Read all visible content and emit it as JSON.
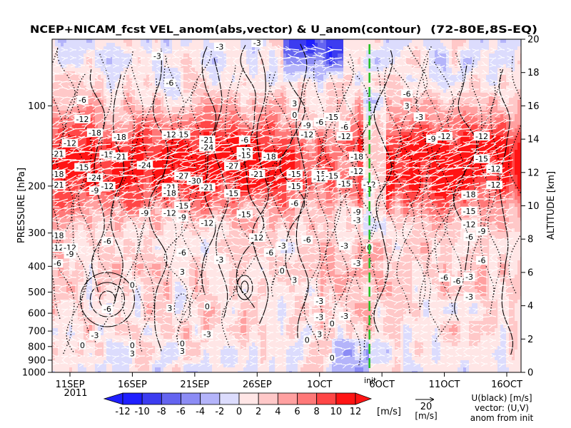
{
  "chart_data": {
    "type": "heatmap",
    "title": "NCEP+NICAM_fcst VEL_anom(abs,vector) & U_anom(contour)",
    "region": "(72-80E,8S-EQ)",
    "ylabel_left": "PRESSURE [hPa]",
    "ylabel_right": "ALTITUDE [km]",
    "year_label": "2011",
    "x_ticks": [
      "11SEP",
      "16SEP",
      "21SEP",
      "26SEP",
      "1OCT",
      "6OCT",
      "11OCT",
      "16OCT"
    ],
    "pressure_ticks": [
      "100",
      "200",
      "300",
      "400",
      "500",
      "600",
      "700",
      "800",
      "900",
      "1000"
    ],
    "altitude_ticks": [
      "0",
      "2",
      "4",
      "6",
      "8",
      "10",
      "12",
      "14",
      "16",
      "18",
      "20"
    ],
    "init_marker": {
      "date": "5OCT",
      "label": "init",
      "color": "#22c022"
    },
    "colorbar": {
      "ticks": [
        "-12",
        "-10",
        "-8",
        "-6",
        "-4",
        "-2",
        "0",
        "2",
        "4",
        "6",
        "8",
        "10",
        "12"
      ],
      "unit": "[m/s]",
      "colors": [
        "#1f1fff",
        "#3c3cf0",
        "#6464f0",
        "#8c8cf5",
        "#b4b4fa",
        "#dcdcfd",
        "#ffe6e6",
        "#ffc8c8",
        "#ffa0a0",
        "#ff7878",
        "#ff4646",
        "#ff1414"
      ]
    },
    "vector_key": {
      "value": "20",
      "unit": "[m/s]"
    },
    "legend_text": [
      "U(black) [m/s]",
      "vector: (U,V)",
      "anom from init"
    ],
    "contour_labels": [
      {
        "date": "12SEP",
        "p": 95,
        "v": "-6"
      },
      {
        "date": "12SEP",
        "p": 112,
        "v": "-12"
      },
      {
        "date": "13SEP",
        "p": 126,
        "v": "-18"
      },
      {
        "date": "15SEP",
        "p": 131,
        "v": "-18"
      },
      {
        "date": "10SEP",
        "p": 151,
        "v": "-21"
      },
      {
        "date": "14SEP",
        "p": 152,
        "v": "-15"
      },
      {
        "date": "15SEP",
        "p": 155,
        "v": "-21"
      },
      {
        "date": "17SEP",
        "p": 167,
        "v": "-24"
      },
      {
        "date": "13SEP",
        "p": 186,
        "v": "-24"
      },
      {
        "date": "10SEP",
        "p": 198,
        "v": "-21"
      },
      {
        "date": "13SEP",
        "p": 208,
        "v": "-9"
      },
      {
        "date": "14SEP",
        "p": 200,
        "v": "-12"
      },
      {
        "date": "19SEP",
        "p": 202,
        "v": "-21"
      },
      {
        "date": "19SEP",
        "p": 212,
        "v": "-18"
      },
      {
        "date": "20SEP",
        "p": 183,
        "v": "-27"
      },
      {
        "date": "21SEP",
        "p": 191,
        "v": "-30"
      },
      {
        "date": "22SEP",
        "p": 202,
        "v": "-21"
      },
      {
        "date": "24SEP",
        "p": 213,
        "v": "-15"
      },
      {
        "date": "20SEP",
        "p": 128,
        "v": "-15"
      },
      {
        "date": "19SEP",
        "p": 128,
        "v": "-12"
      },
      {
        "date": "22SEP",
        "p": 134,
        "v": "-21"
      },
      {
        "date": "22SEP",
        "p": 143,
        "v": "-24"
      },
      {
        "date": "24SEP",
        "p": 168,
        "v": "-27"
      },
      {
        "date": "25SEP",
        "p": 134,
        "v": "-6"
      },
      {
        "date": "25SEP",
        "p": 148,
        "v": "-12"
      },
      {
        "date": "25SEP",
        "p": 153,
        "v": "-15"
      },
      {
        "date": "27SEP",
        "p": 155,
        "v": "-18"
      },
      {
        "date": "26SEP",
        "p": 180,
        "v": "-21"
      },
      {
        "date": "20SEP",
        "p": 237,
        "v": "-15"
      },
      {
        "date": "19SEP",
        "p": 252,
        "v": "-12"
      },
      {
        "date": "20SEP",
        "p": 262,
        "v": "-9"
      },
      {
        "date": "22SEP",
        "p": 275,
        "v": "-12"
      },
      {
        "date": "17SEP",
        "p": 252,
        "v": "-9"
      },
      {
        "date": "25SEP",
        "p": 255,
        "v": "-15"
      },
      {
        "date": "26SEP",
        "p": 312,
        "v": "-12"
      },
      {
        "date": "10SEP",
        "p": 306,
        "v": "-18"
      },
      {
        "date": "10SEP",
        "p": 340,
        "v": "-12"
      },
      {
        "date": "11SEP",
        "p": 340,
        "v": "-12"
      },
      {
        "date": "11SEP",
        "p": 360,
        "v": "-9"
      },
      {
        "date": "10SEP",
        "p": 390,
        "v": "-6"
      },
      {
        "date": "14SEP",
        "p": 322,
        "v": "-6"
      },
      {
        "date": "20SEP",
        "p": 355,
        "v": "-6"
      },
      {
        "date": "23SEP",
        "p": 378,
        "v": "-3"
      },
      {
        "date": "27SEP",
        "p": 355,
        "v": "-6"
      },
      {
        "date": "28SEP",
        "p": 335,
        "v": "-3"
      },
      {
        "date": "14SEP",
        "p": 578,
        "v": "-6"
      },
      {
        "date": "23SEP",
        "p": 60,
        "v": "-3"
      },
      {
        "date": "26SEP",
        "p": 58,
        "v": "-3"
      },
      {
        "date": "18SEP",
        "p": 65,
        "v": "-3"
      },
      {
        "date": "19SEP",
        "p": 82,
        "v": "-6"
      },
      {
        "date": "29SEP",
        "p": 98,
        "v": "3"
      },
      {
        "date": "29SEP",
        "p": 108,
        "v": "0"
      },
      {
        "date": "30SEP",
        "p": 118,
        "v": "-9"
      },
      {
        "date": "1OCT",
        "p": 115,
        "v": "-6"
      },
      {
        "date": "30SEP",
        "p": 128,
        "v": "-12"
      },
      {
        "date": "2OCT",
        "p": 110,
        "v": "-15"
      },
      {
        "date": "3OCT",
        "p": 118,
        "v": "-9"
      },
      {
        "date": "3OCT",
        "p": 120,
        "v": "-6"
      },
      {
        "date": "3OCT",
        "p": 130,
        "v": "-12"
      },
      {
        "date": "4OCT",
        "p": 155,
        "v": "-18"
      },
      {
        "date": "29SEP",
        "p": 180,
        "v": "-15"
      },
      {
        "date": "29SEP",
        "p": 200,
        "v": "-15"
      },
      {
        "date": "1OCT",
        "p": 180,
        "v": "-15"
      },
      {
        "date": "1OCT",
        "p": 187,
        "v": "-12"
      },
      {
        "date": "2OCT",
        "p": 183,
        "v": "-15"
      },
      {
        "date": "4OCT",
        "p": 176,
        "v": "-12"
      },
      {
        "date": "3OCT",
        "p": 196,
        "v": "-15"
      },
      {
        "date": "5OCT",
        "p": 197,
        "v": "-12"
      },
      {
        "date": "29SEP",
        "p": 232,
        "v": "-6"
      },
      {
        "date": "4OCT",
        "p": 250,
        "v": "-9"
      },
      {
        "date": "4OCT",
        "p": 268,
        "v": "-3"
      },
      {
        "date": "30SEP",
        "p": 318,
        "v": "-6"
      },
      {
        "date": "28SEP",
        "p": 415,
        "v": "0"
      },
      {
        "date": "29SEP",
        "p": 450,
        "v": "3"
      },
      {
        "date": "1OCT",
        "p": 540,
        "v": "-3"
      },
      {
        "date": "1OCT",
        "p": 620,
        "v": "-3"
      },
      {
        "date": "2OCT",
        "p": 655,
        "v": "0"
      },
      {
        "date": "3OCT",
        "p": 335,
        "v": "-3"
      },
      {
        "date": "4OCT",
        "p": 390,
        "v": "-3"
      },
      {
        "date": "5OCT",
        "p": 340,
        "v": "0"
      },
      {
        "date": "5OCT",
        "p": 205,
        "v": "3"
      },
      {
        "date": "8OCT",
        "p": 90,
        "v": "-6"
      },
      {
        "date": "8OCT",
        "p": 100,
        "v": "3"
      },
      {
        "date": "9OCT",
        "p": 110,
        "v": "-3"
      },
      {
        "date": "10OCT",
        "p": 133,
        "v": "-9"
      },
      {
        "date": "11OCT",
        "p": 130,
        "v": "-12"
      },
      {
        "date": "14OCT",
        "p": 130,
        "v": "-12"
      },
      {
        "date": "14OCT",
        "p": 158,
        "v": "-15"
      },
      {
        "date": "15OCT",
        "p": 172,
        "v": "-12"
      },
      {
        "date": "15OCT",
        "p": 198,
        "v": "-12"
      },
      {
        "date": "13OCT",
        "p": 215,
        "v": "-18"
      },
      {
        "date": "13OCT",
        "p": 248,
        "v": "-15"
      },
      {
        "date": "13OCT",
        "p": 278,
        "v": "-12"
      },
      {
        "date": "14OCT",
        "p": 295,
        "v": "-9"
      },
      {
        "date": "13OCT",
        "p": 310,
        "v": "-6"
      },
      {
        "date": "14OCT",
        "p": 380,
        "v": "-6"
      },
      {
        "date": "13OCT",
        "p": 438,
        "v": "-3"
      },
      {
        "date": "12OCT",
        "p": 455,
        "v": "-6"
      },
      {
        "date": "13OCT",
        "p": 520,
        "v": "-3"
      },
      {
        "date": "11OCT",
        "p": 440,
        "v": "-6"
      },
      {
        "date": "16SEP",
        "p": 470,
        "v": "0"
      },
      {
        "date": "22SEP",
        "p": 565,
        "v": "0"
      },
      {
        "date": "19SEP",
        "p": 575,
        "v": "3"
      },
      {
        "date": "22SEP",
        "p": 720,
        "v": "-3"
      },
      {
        "date": "20SEP",
        "p": 420,
        "v": "3"
      },
      {
        "date": "13SEP",
        "p": 725,
        "v": "-3"
      },
      {
        "date": "12SEP",
        "p": 790,
        "v": "0"
      },
      {
        "date": "16SEP",
        "p": 790,
        "v": "0"
      },
      {
        "date": "16SEP",
        "p": 850,
        "v": "3"
      },
      {
        "date": "20SEP",
        "p": 780,
        "v": "0"
      },
      {
        "date": "20SEP",
        "p": 830,
        "v": "3"
      },
      {
        "date": "30SEP",
        "p": 755,
        "v": "0"
      },
      {
        "date": "1OCT",
        "p": 720,
        "v": "3"
      },
      {
        "date": "3OCT",
        "p": 615,
        "v": "-3"
      },
      {
        "date": "2OCT",
        "p": 880,
        "v": "0"
      },
      {
        "date": "10SEP",
        "p": 180,
        "v": "-18"
      },
      {
        "date": "11SEP",
        "p": 138,
        "v": "-12"
      },
      {
        "date": "12SEP",
        "p": 170,
        "v": "-15"
      }
    ]
  }
}
